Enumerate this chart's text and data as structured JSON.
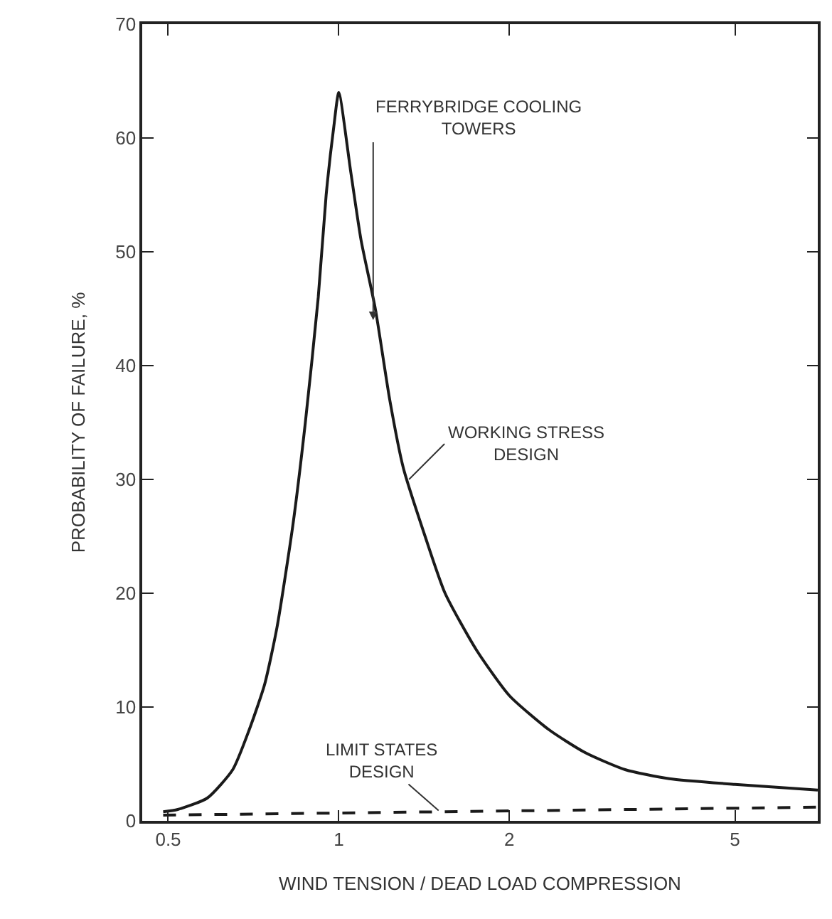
{
  "chart_data": {
    "type": "line",
    "xlabel": "WIND TENSION / DEAD LOAD COMPRESSION",
    "ylabel": "PROBABILITY OF FAILURE, %",
    "log": "x",
    "xlim": [
      0.45,
      7
    ],
    "xticks": [
      {
        "value": 0.5,
        "label": "0.5"
      },
      1,
      2,
      5
    ],
    "ylim": [
      0,
      70
    ],
    "yticks": [
      0,
      10,
      20,
      30,
      40,
      50,
      60,
      70
    ],
    "series": [
      {
        "color": "#1a1a1a",
        "line_style": "solid",
        "x": [
          0.49,
          0.52,
          0.586,
          0.65,
          0.695,
          0.74,
          0.778,
          0.83,
          0.873,
          0.92,
          0.95,
          0.98,
          1.0,
          1.05,
          1.095,
          1.16,
          1.23,
          1.3,
          1.42,
          1.54,
          1.75,
          2.0,
          2.35,
          2.72,
          3.2,
          3.83,
          5.0,
          7.0
        ],
        "values": [
          0.8,
          1.0,
          2.0,
          4.5,
          8,
          12,
          17,
          26,
          35,
          46,
          55,
          61,
          64,
          57,
          51,
          45,
          37,
          31,
          25,
          20,
          15,
          11,
          8,
          6,
          4.5,
          3.7,
          3.2,
          2.7
        ]
      },
      {
        "color": "#1a1a1a",
        "line_style": "dashed",
        "x": [
          0.49,
          7.0
        ],
        "values": [
          0.5,
          1.2
        ]
      }
    ],
    "annotations": [
      {
        "text": "FERRYBRIDGE COOLING\nTOWERS",
        "x": 1.15,
        "y": 44
      },
      {
        "text": "WORKING STRESS\nDESIGN",
        "x": 1.33,
        "y": 30
      },
      {
        "text": "LIMIT STATES\nDESIGN",
        "x": 1.5,
        "y": 0.9
      }
    ]
  }
}
